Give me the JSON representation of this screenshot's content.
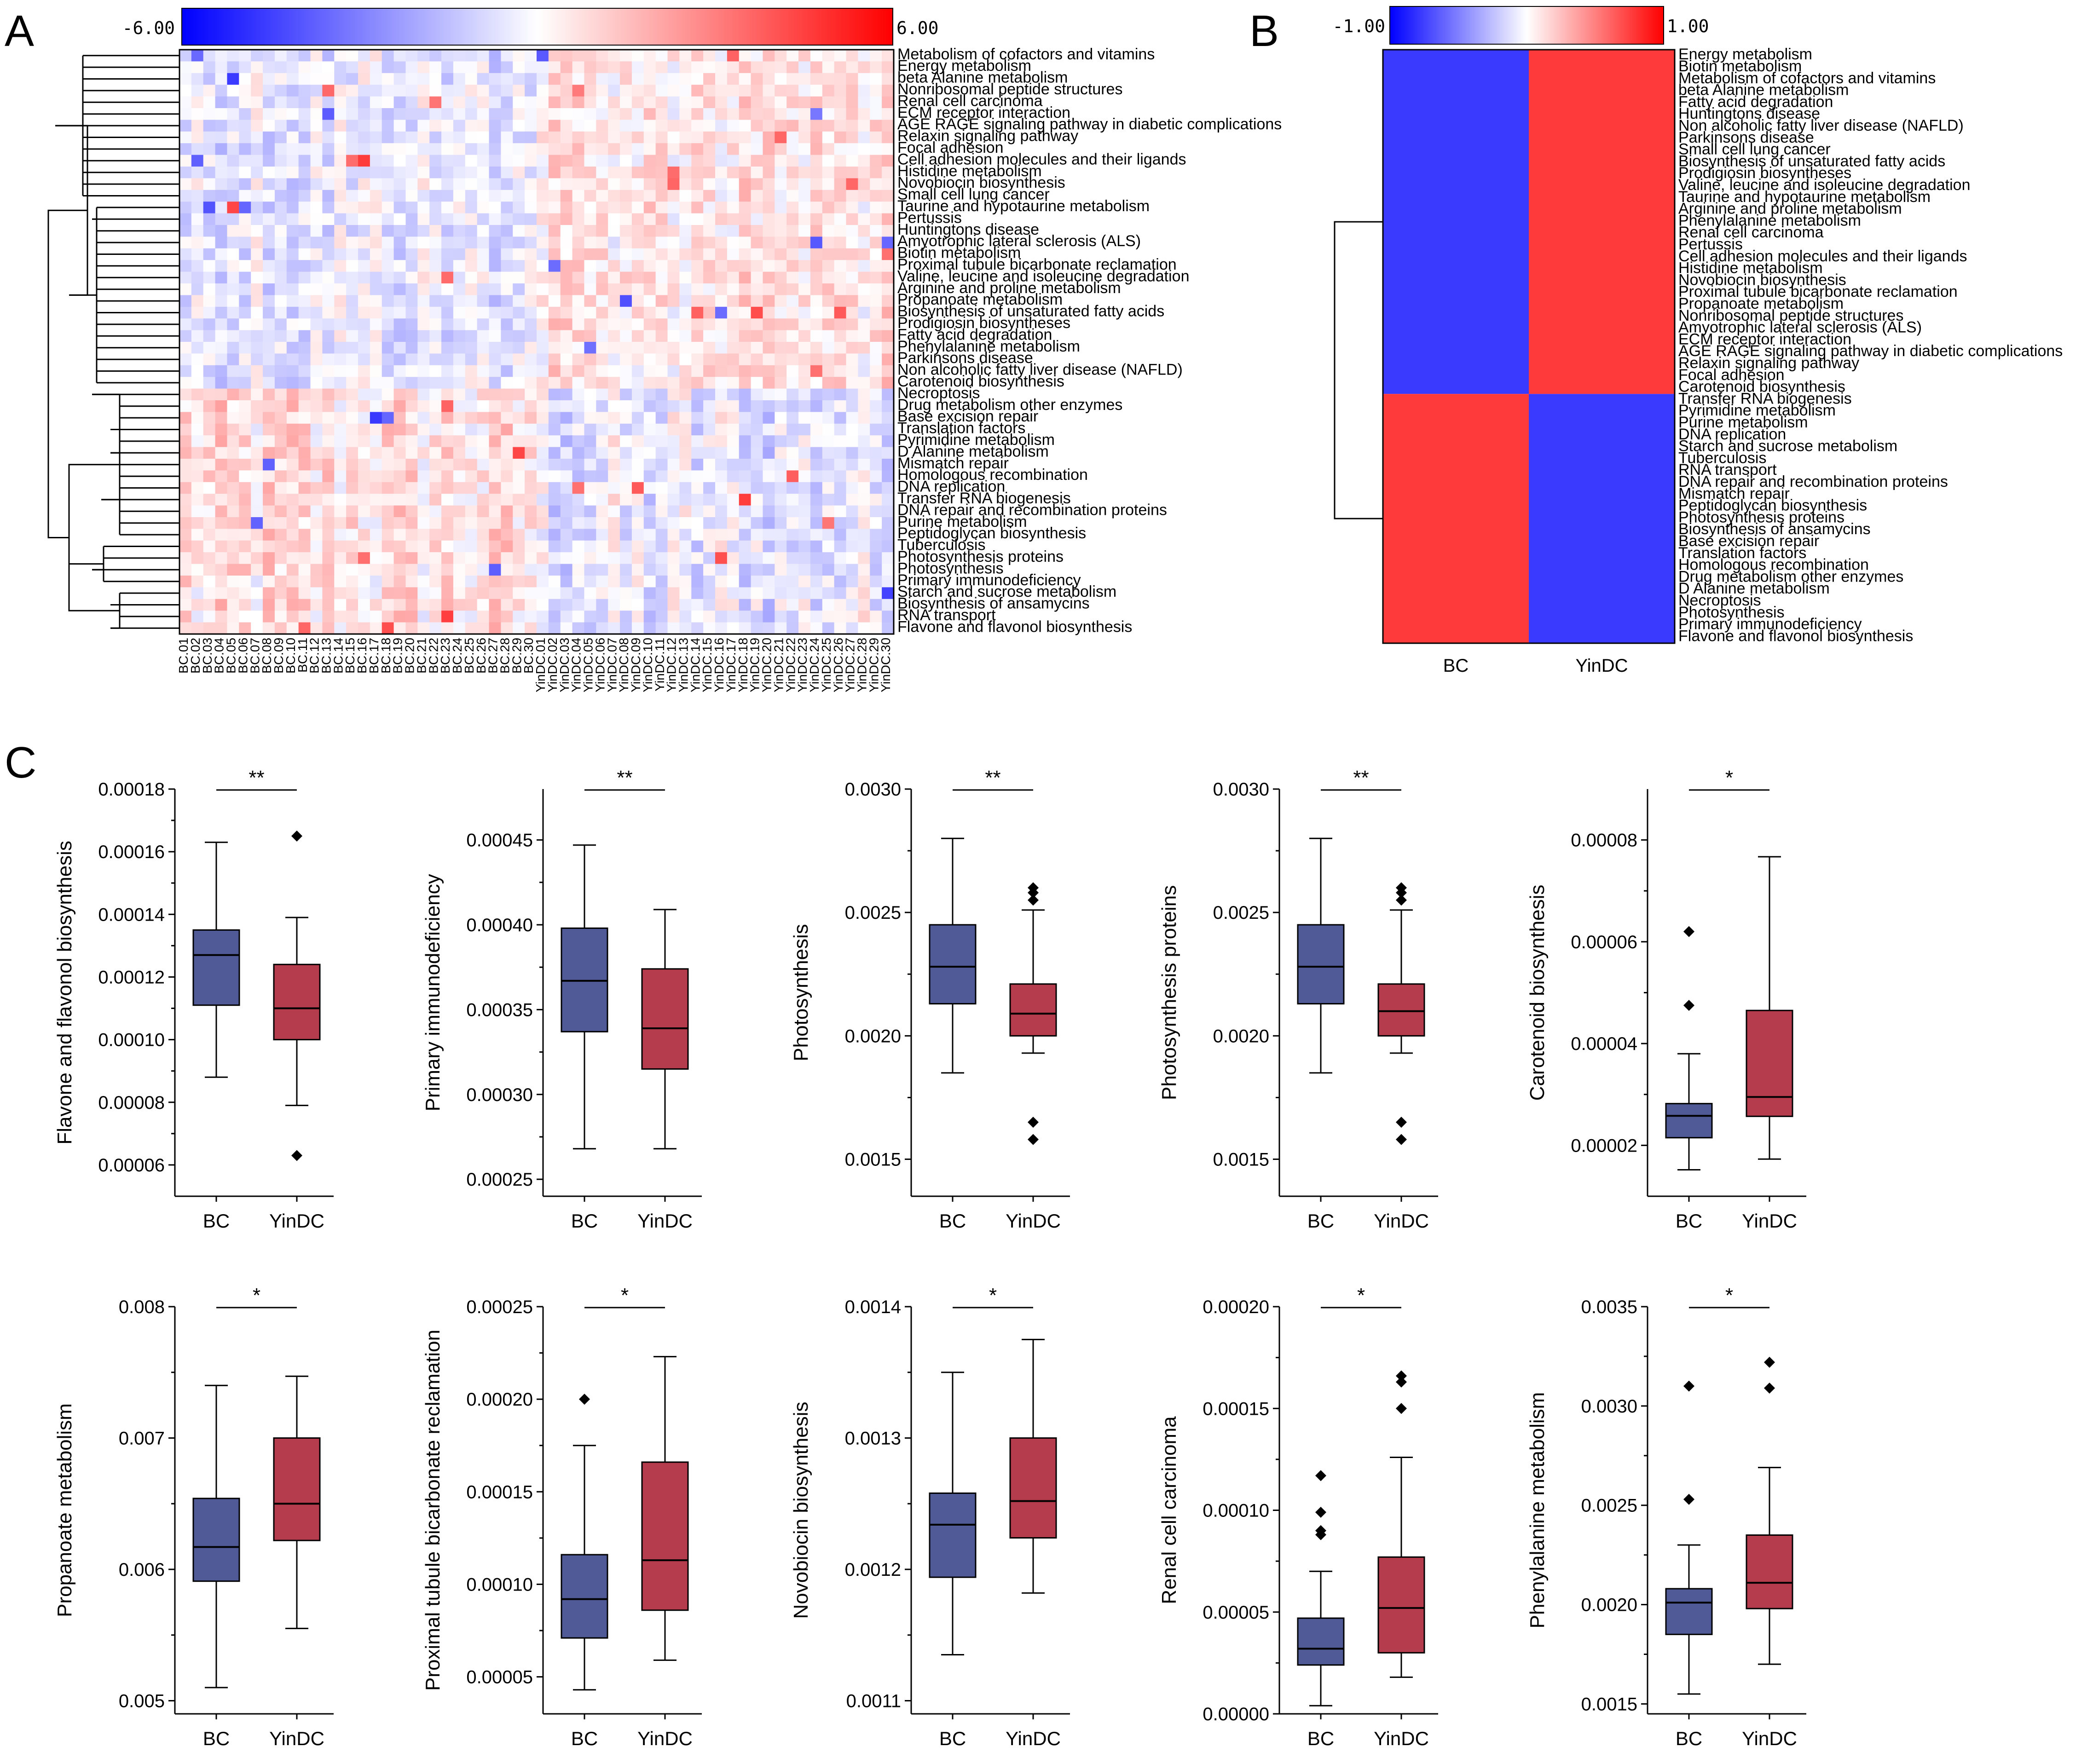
{
  "panels": {
    "a": "A",
    "b": "B",
    "c": "C"
  },
  "colors": {
    "neg": "#3a3aff",
    "pos": "#ff3a3a",
    "mid": "#ffffff",
    "bc_box": "#4f5a96",
    "yin_box": "#b53c4c"
  },
  "chart_data": [
    {
      "id": "A",
      "type": "heatmap",
      "scale_min_label": "-6.00",
      "scale_max_label": "6.00",
      "range": [
        -6,
        6
      ],
      "columns": [
        "BC.01",
        "BC.02",
        "BC.03",
        "BC.04",
        "BC.05",
        "BC.06",
        "BC.07",
        "BC.08",
        "BC.09",
        "BC.10",
        "BC.11",
        "BC.12",
        "BC.13",
        "BC.14",
        "BC.15",
        "BC.16",
        "BC.17",
        "BC.18",
        "BC.19",
        "BC.20",
        "BC.21",
        "BC.22",
        "BC.23",
        "BC.24",
        "BC.25",
        "BC.26",
        "BC.27",
        "BC.28",
        "BC.29",
        "BC.30",
        "YinDC.01",
        "YinDC.02",
        "YinDC.03",
        "YinDC.04",
        "YinDC.05",
        "YinDC.06",
        "YinDC.07",
        "YinDC.08",
        "YinDC.09",
        "YinDC.10",
        "YinDC.11",
        "YinDC.12",
        "YinDC.13",
        "YinDC.14",
        "YinDC.15",
        "YinDC.16",
        "YinDC.17",
        "YinDC.18",
        "YinDC.19",
        "YinDC.20",
        "YinDC.21",
        "YinDC.22",
        "YinDC.23",
        "YinDC.24",
        "YinDC.25",
        "YinDC.26",
        "YinDC.27",
        "YinDC.28",
        "YinDC.29",
        "YinDC.30"
      ],
      "rows": [
        "Metabolism of cofactors and vitamins",
        "Energy metabolism",
        "beta Alanine metabolism",
        "Nonribosomal peptide structures",
        "Renal cell carcinoma",
        "ECM receptor interaction",
        "AGE RAGE signaling pathway in diabetic complications",
        "Relaxin signaling pathway",
        "Focal adhesion",
        "Cell adhesion molecules and their ligands",
        "Histidine metabolism",
        "Novobiocin biosynthesis",
        "Small cell lung cancer",
        "Taurine and hypotaurine metabolism",
        "Pertussis",
        "Huntingtons disease",
        "Amyotrophic lateral sclerosis (ALS)",
        "Biotin metabolism",
        "Proximal tubule bicarbonate reclamation",
        "Valine, leucine and isoleucine degradation",
        "Arginine and proline metabolism",
        "Propanoate metabolism",
        "Biosynthesis of unsaturated fatty acids",
        "Prodigiosin biosyntheses",
        "Fatty acid degradation",
        "Phenylalanine metabolism",
        "Parkinsons disease",
        "Non alcoholic fatty liver disease (NAFLD)",
        "Carotenoid biosynthesis",
        "Necroptosis",
        "Drug metabolism other enzymes",
        "Base excision repair",
        "Translation factors",
        "Pyrimidine metabolism",
        "D Alanine metabolism",
        "Mismatch repair",
        "Homologous recombination",
        "DNA replication",
        "Transfer RNA biogenesis",
        "DNA repair and recombination proteins",
        "Purine metabolism",
        "Peptidoglycan biosynthesis",
        "Tuberculosis",
        "Photosynthesis proteins",
        "Photosynthesis",
        "Primary immunodeficiency",
        "Starch and sucrose metabolism",
        "Biosynthesis of ansamycins",
        "RNA transport",
        "Flavone and flavonol biosynthesis"
      ],
      "cluster_split_row": 29,
      "values_note": "cell z-scores, mostly within -3..3 with sparse extremes near 6; upper cluster tends positive in YinDC, lower cluster positive in BC"
    },
    {
      "id": "B",
      "type": "heatmap",
      "scale_min_label": "-1.00",
      "scale_max_label": "1.00",
      "range": [
        -1,
        1
      ],
      "columns": [
        "BC",
        "YinDC"
      ],
      "rows": [
        "Energy metabolism",
        "Biotin metabolism",
        "Metabolism of cofactors and vitamins",
        "beta Alanine metabolism",
        "Fatty acid degradation",
        "Huntingtons disease",
        "Non alcoholic fatty liver disease (NAFLD)",
        "Parkinsons disease",
        "Small cell lung cancer",
        "Biosynthesis of unsaturated fatty acids",
        "Prodigiosin biosyntheses",
        "Valine, leucine and isoleucine degradation",
        "Taurine and hypotaurine metabolism",
        "Arginine and proline metabolism",
        "Phenylalanine metabolism",
        "Renal cell carcinoma",
        "Pertussis",
        "Cell adhesion molecules and their ligands",
        "Histidine metabolism",
        "Novobiocin biosynthesis",
        "Proximal tubule bicarbonate reclamation",
        "Propanoate metabolism",
        "Nonribosomal peptide structures",
        "Amyotrophic lateral sclerosis (ALS)",
        "ECM receptor interaction",
        "AGE RAGE signaling pathway in diabetic complications",
        "Relaxin signaling pathway",
        "Focal adhesion",
        "Carotenoid biosynthesis",
        "Transfer RNA biogenesis",
        "Pyrimidine metabolism",
        "Purine metabolism",
        "DNA replication",
        "Starch and sucrose metabolism",
        "Tuberculosis",
        "RNA transport",
        "DNA repair and recombination proteins",
        "Mismatch repair",
        "Peptidoglycan biosynthesis",
        "Photosynthesis proteins",
        "Biosynthesis of ansamycins",
        "Base excision repair",
        "Translation factors",
        "Homologous recombination",
        "Drug metabolism other enzymes",
        "D Alanine metabolism",
        "Necroptosis",
        "Photosynthesis",
        "Primary immunodeficiency",
        "Flavone and flavonol biosynthesis"
      ],
      "groups": [
        {
          "rows": 29,
          "values": [
            -1,
            1
          ]
        },
        {
          "rows": 21,
          "values": [
            1,
            -1
          ]
        }
      ]
    },
    {
      "id": "C1",
      "type": "box",
      "ylabel": "Flavone and flavonol biosynthesis",
      "sig": "**",
      "categories": [
        "BC",
        "YinDC"
      ],
      "ylim": [
        5e-05,
        0.00018
      ],
      "yticks": [
        6e-05,
        8e-05,
        0.0001,
        0.00012,
        0.00014,
        0.00016,
        0.00018
      ],
      "ytick_labels": [
        "0.00006",
        "0.00008",
        "0.00010",
        "0.00012",
        "0.00014",
        "0.00016",
        "0.00018"
      ],
      "boxes": [
        {
          "whisker_low": 8.8e-05,
          "q1": 0.000111,
          "median": 0.000127,
          "q3": 0.000135,
          "whisker_high": 0.000163,
          "outliers": []
        },
        {
          "whisker_low": 7.9e-05,
          "q1": 0.0001,
          "median": 0.00011,
          "q3": 0.000124,
          "whisker_high": 0.000139,
          "outliers": [
            0.000165,
            6.3e-05
          ]
        }
      ]
    },
    {
      "id": "C2",
      "type": "box",
      "ylabel": "Primary immunodeficiency",
      "sig": "**",
      "categories": [
        "BC",
        "YinDC"
      ],
      "ylim": [
        0.00024,
        0.00048
      ],
      "yticks": [
        0.00025,
        0.0003,
        0.00035,
        0.0004,
        0.00045
      ],
      "ytick_labels": [
        "0.00025",
        "0.00030",
        "0.00035",
        "0.00040",
        "0.00045"
      ],
      "boxes": [
        {
          "whisker_low": 0.000268,
          "q1": 0.000337,
          "median": 0.000367,
          "q3": 0.000398,
          "whisker_high": 0.000447,
          "outliers": []
        },
        {
          "whisker_low": 0.000268,
          "q1": 0.000315,
          "median": 0.000339,
          "q3": 0.000374,
          "whisker_high": 0.000409,
          "outliers": []
        }
      ]
    },
    {
      "id": "C3",
      "type": "box",
      "ylabel": "Photosynthesis",
      "sig": "**",
      "categories": [
        "BC",
        "YinDC"
      ],
      "ylim": [
        0.00135,
        0.003
      ],
      "yticks": [
        0.0015,
        0.002,
        0.0025,
        0.003
      ],
      "ytick_labels": [
        "0.0015",
        "0.0020",
        "0.0025",
        "0.0030"
      ],
      "boxes": [
        {
          "whisker_low": 0.00185,
          "q1": 0.00213,
          "median": 0.00228,
          "q3": 0.00245,
          "whisker_high": 0.0028,
          "outliers": []
        },
        {
          "whisker_low": 0.00193,
          "q1": 0.002,
          "median": 0.00209,
          "q3": 0.00221,
          "whisker_high": 0.00251,
          "outliers": [
            0.0026,
            0.00258,
            0.00255,
            0.00165,
            0.00158
          ]
        }
      ]
    },
    {
      "id": "C4",
      "type": "box",
      "ylabel": "Photosynthesis proteins",
      "sig": "**",
      "categories": [
        "BC",
        "YinDC"
      ],
      "ylim": [
        0.00135,
        0.003
      ],
      "yticks": [
        0.0015,
        0.002,
        0.0025,
        0.003
      ],
      "ytick_labels": [
        "0.0015",
        "0.0020",
        "0.0025",
        "0.0030"
      ],
      "boxes": [
        {
          "whisker_low": 0.00185,
          "q1": 0.00213,
          "median": 0.00228,
          "q3": 0.00245,
          "whisker_high": 0.0028,
          "outliers": []
        },
        {
          "whisker_low": 0.00193,
          "q1": 0.002,
          "median": 0.0021,
          "q3": 0.00221,
          "whisker_high": 0.00251,
          "outliers": [
            0.0026,
            0.00258,
            0.00255,
            0.00165,
            0.00158
          ]
        }
      ]
    },
    {
      "id": "C5",
      "type": "box",
      "ylabel": "Carotenoid biosynthesis",
      "sig": "*",
      "categories": [
        "BC",
        "YinDC"
      ],
      "ylim": [
        1e-05,
        9e-05
      ],
      "yticks": [
        2e-05,
        4e-05,
        6e-05,
        8e-05
      ],
      "ytick_labels": [
        "0.00002",
        "0.00004",
        "0.00006",
        "0.00008"
      ],
      "boxes": [
        {
          "whisker_low": 1.52e-05,
          "q1": 2.15e-05,
          "median": 2.58e-05,
          "q3": 2.82e-05,
          "whisker_high": 3.8e-05,
          "outliers": [
            6.2e-05,
            4.75e-05
          ]
        },
        {
          "whisker_low": 1.73e-05,
          "q1": 2.57e-05,
          "median": 2.95e-05,
          "q3": 4.65e-05,
          "whisker_high": 7.67e-05,
          "outliers": []
        }
      ]
    },
    {
      "id": "C6",
      "type": "box",
      "ylabel": "Propanoate metabolism",
      "sig": "*",
      "categories": [
        "BC",
        "YinDC"
      ],
      "ylim": [
        0.0049,
        0.008
      ],
      "yticks": [
        0.005,
        0.006,
        0.007,
        0.008
      ],
      "ytick_labels": [
        "0.005",
        "0.006",
        "0.007",
        "0.008"
      ],
      "boxes": [
        {
          "whisker_low": 0.0051,
          "q1": 0.00591,
          "median": 0.00617,
          "q3": 0.00654,
          "whisker_high": 0.0074,
          "outliers": []
        },
        {
          "whisker_low": 0.00555,
          "q1": 0.00622,
          "median": 0.0065,
          "q3": 0.007,
          "whisker_high": 0.00747,
          "outliers": []
        }
      ]
    },
    {
      "id": "C7",
      "type": "box",
      "ylabel": "Proximal tubule bicarbonate reclamation",
      "sig": "*",
      "categories": [
        "BC",
        "YinDC"
      ],
      "ylim": [
        3e-05,
        0.00025
      ],
      "yticks": [
        5e-05,
        0.0001,
        0.00015,
        0.0002,
        0.00025
      ],
      "ytick_labels": [
        "0.00005",
        "0.00010",
        "0.00015",
        "0.00020",
        "0.00025"
      ],
      "boxes": [
        {
          "whisker_low": 4.3e-05,
          "q1": 7.1e-05,
          "median": 9.2e-05,
          "q3": 0.000116,
          "whisker_high": 0.000175,
          "outliers": [
            0.0002
          ]
        },
        {
          "whisker_low": 5.9e-05,
          "q1": 8.6e-05,
          "median": 0.000113,
          "q3": 0.000166,
          "whisker_high": 0.000223,
          "outliers": []
        }
      ]
    },
    {
      "id": "C8",
      "type": "box",
      "ylabel": "Novobiocin biosynthesis",
      "sig": "*",
      "categories": [
        "BC",
        "YinDC"
      ],
      "ylim": [
        0.00109,
        0.0014
      ],
      "yticks": [
        0.0011,
        0.0012,
        0.0013,
        0.0014
      ],
      "ytick_labels": [
        "0.0011",
        "0.0012",
        "0.0013",
        "0.0014"
      ],
      "boxes": [
        {
          "whisker_low": 0.001135,
          "q1": 0.001194,
          "median": 0.001234,
          "q3": 0.001258,
          "whisker_high": 0.00135,
          "outliers": []
        },
        {
          "whisker_low": 0.001182,
          "q1": 0.001224,
          "median": 0.001252,
          "q3": 0.0013,
          "whisker_high": 0.001375,
          "outliers": []
        }
      ]
    },
    {
      "id": "C9",
      "type": "box",
      "ylabel": "Renal cell carcinoma",
      "sig": "*",
      "categories": [
        "BC",
        "YinDC"
      ],
      "ylim": [
        0,
        0.0002
      ],
      "yticks": [
        0,
        5e-05,
        0.0001,
        0.00015,
        0.0002
      ],
      "ytick_labels": [
        "0.00000",
        "0.00005",
        "0.00010",
        "0.00015",
        "0.00020"
      ],
      "boxes": [
        {
          "whisker_low": 4e-06,
          "q1": 2.4e-05,
          "median": 3.2e-05,
          "q3": 4.7e-05,
          "whisker_high": 7e-05,
          "outliers": [
            0.000117,
            9.9e-05,
            9e-05,
            8.8e-05
          ]
        },
        {
          "whisker_low": 1.8e-05,
          "q1": 3e-05,
          "median": 5.2e-05,
          "q3": 7.7e-05,
          "whisker_high": 0.000126,
          "outliers": [
            0.000166,
            0.000163,
            0.00015
          ]
        }
      ]
    },
    {
      "id": "C10",
      "type": "box",
      "ylabel": "Phenylalanine metabolism",
      "sig": "*",
      "categories": [
        "BC",
        "YinDC"
      ],
      "ylim": [
        0.00145,
        0.0035
      ],
      "yticks": [
        0.0015,
        0.002,
        0.0025,
        0.003,
        0.0035
      ],
      "ytick_labels": [
        "0.0015",
        "0.0020",
        "0.0025",
        "0.0030",
        "0.0035"
      ],
      "boxes": [
        {
          "whisker_low": 0.00155,
          "q1": 0.00185,
          "median": 0.00201,
          "q3": 0.00208,
          "whisker_high": 0.0023,
          "outliers": [
            0.0031,
            0.00253
          ]
        },
        {
          "whisker_low": 0.0017,
          "q1": 0.00198,
          "median": 0.00211,
          "q3": 0.00235,
          "whisker_high": 0.00269,
          "outliers": [
            0.00322,
            0.00309
          ]
        }
      ]
    }
  ]
}
